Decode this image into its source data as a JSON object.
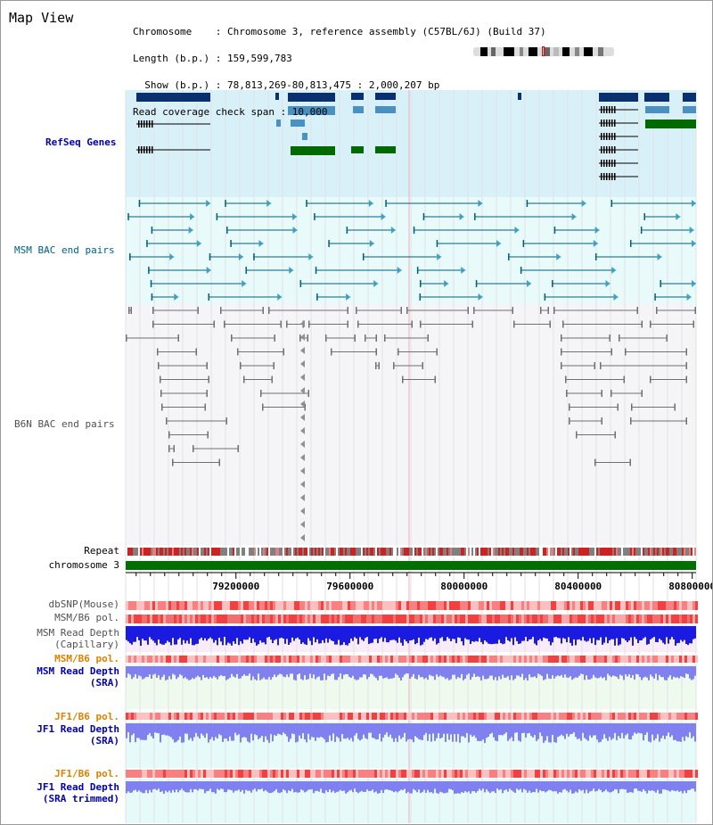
{
  "title": "Map View",
  "info": {
    "chromosome": "Chromosome    : Chromosome 3, reference assembly (C57BL/6J) (Build 37)",
    "length": "Length (b.p.) : 159,599,783",
    "show": "  Show (b.p.) : 78,813,269-80,813,475 : 2,000,207 bp",
    "span": "Read coverage check span : 10,000"
  },
  "tracks": {
    "refseq": "RefSeq Genes",
    "msm_bac": "MSM BAC end pairs",
    "b6n_bac": "B6N BAC end pairs",
    "repeat": "Repeat",
    "chromosome": "chromosome 3",
    "dbsnp": "dbSNP(Mouse)",
    "msm_b6_pol": "MSM/B6 pol.",
    "msm_depth_cap_1": "MSM Read Depth",
    "msm_depth_cap_2": "(Capillary)",
    "msm_b6_pol_2": "MSM/B6 pol.",
    "msm_depth_sra_1": "MSM Read Depth",
    "msm_depth_sra_2": "(SRA)",
    "jf1_b6_pol": "JF1/B6 pol.",
    "jf1_depth_sra_1": "JF1 Read Depth",
    "jf1_depth_sra_2": "(SRA)",
    "jf1_b6_pol_2": "JF1/B6 pol.",
    "jf1_depth_trim_1": "JF1 Read Depth",
    "jf1_depth_trim_2": "(SRA trimmed)"
  },
  "axis": {
    "start": 78813269,
    "end": 80813475,
    "ticks": [
      {
        "value": 79200000,
        "label": "79200000"
      },
      {
        "value": 79600000,
        "label": "79600000"
      },
      {
        "value": 80000000,
        "label": "80000000"
      },
      {
        "value": 80400000,
        "label": "80400000"
      },
      {
        "value": 80800000,
        "label": "80800000"
      }
    ]
  },
  "colors": {
    "refseq_bg": "#d8f0f8",
    "msm_bg": "#e8fafa",
    "b6n_bg": "#f5f5f8",
    "gene_dark": "#0a3070",
    "gene_mid": "#4a90c0",
    "gene_green": "#006a00",
    "chrom_bar": "#007000",
    "depth_blue": "#1a1ae0",
    "depth_violet": "#8080f0",
    "pol_red": "#f04040"
  }
}
